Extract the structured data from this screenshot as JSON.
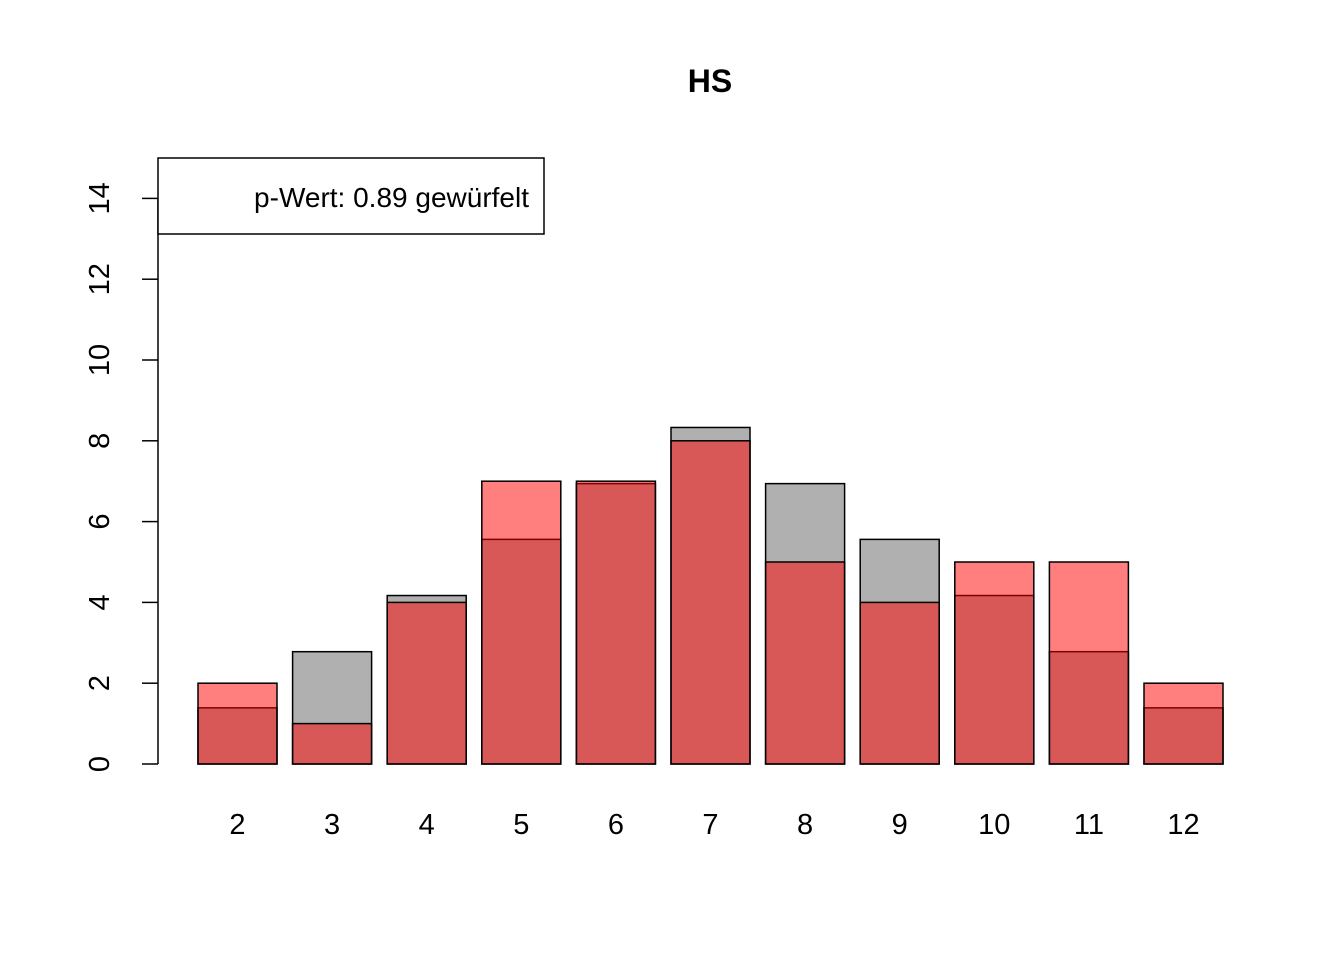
{
  "chart_data": {
    "type": "bar",
    "title": "HS",
    "xlabel": "",
    "ylabel": "",
    "categories": [
      "2",
      "3",
      "4",
      "5",
      "6",
      "7",
      "8",
      "9",
      "10",
      "11",
      "12"
    ],
    "y_ticks": [
      "0",
      "2",
      "4",
      "6",
      "8",
      "10",
      "12",
      "14"
    ],
    "ylim": [
      0,
      15
    ],
    "grid": false,
    "legend": {
      "position": "top-left",
      "text": "p-Wert: 0.89 gewürfelt"
    },
    "series": [
      {
        "values": [
          1.39,
          2.78,
          4.17,
          5.56,
          6.94,
          8.33,
          6.94,
          5.56,
          4.17,
          2.78,
          1.39
        ],
        "color": "#B0B0B0"
      },
      {
        "name": "gewürfelt",
        "values": [
          2,
          1,
          4,
          7,
          7,
          8,
          5,
          4,
          5,
          5,
          2
        ],
        "color": "#FF0000",
        "opacity": 0.5
      }
    ]
  }
}
